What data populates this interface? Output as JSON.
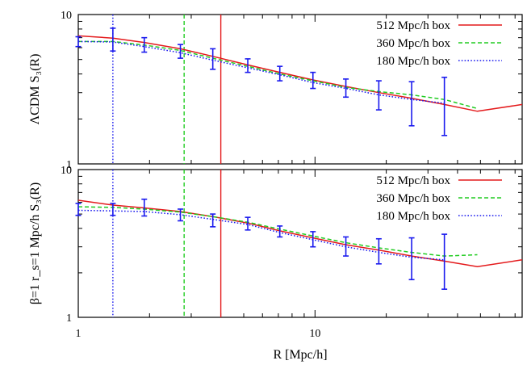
{
  "chart_data": [
    {
      "type": "line",
      "ylabel": "ΛCDM S₃(R)",
      "xlabel": "",
      "xscale": "log",
      "yscale": "log",
      "xlim": [
        1,
        75
      ],
      "ylim": [
        1,
        10
      ],
      "grid": false,
      "legend_position": "top-right",
      "y_ticks": [
        {
          "value": 1,
          "label": "1"
        },
        {
          "value": 10,
          "label": "10"
        }
      ],
      "x_ticks": [
        {
          "value": 1,
          "label": ""
        },
        {
          "value": 10,
          "label": ""
        }
      ],
      "vertical_lines": [
        {
          "series": "180 Mpc/h box",
          "x": 1.4
        },
        {
          "series": "360 Mpc/h box",
          "x": 2.8
        },
        {
          "series": "512 Mpc/h box",
          "x": 4.0
        }
      ],
      "series": [
        {
          "name": "512 Mpc/h box",
          "color": "#e41a1c",
          "dash": "solid",
          "x": [
            1,
            1.4,
            1.9,
            2.7,
            3.7,
            5.2,
            7.1,
            9.8,
            13.5,
            18.6,
            25.6,
            35.2,
            48.5,
            75
          ],
          "y": [
            7.2,
            6.95,
            6.5,
            5.9,
            5.25,
            4.6,
            4.1,
            3.65,
            3.3,
            3.0,
            2.75,
            2.5,
            2.25,
            2.5
          ]
        },
        {
          "name": "360 Mpc/h box",
          "color": "#22cc22",
          "dash": "dashed",
          "x": [
            1,
            1.4,
            1.9,
            2.7,
            3.7,
            5.2,
            7.1,
            9.8,
            13.5,
            18.6,
            25.6,
            35.2,
            48.5
          ],
          "y": [
            6.6,
            6.6,
            6.25,
            5.75,
            5.1,
            4.5,
            4.0,
            3.6,
            3.25,
            3.05,
            2.9,
            2.7,
            2.35
          ]
        },
        {
          "name": "180 Mpc/h box",
          "color": "#1a1aee",
          "dash": "dotted",
          "x": [
            1,
            1.4,
            1.9,
            2.7,
            3.7,
            5.2,
            7.1,
            9.8,
            13.5,
            18.6,
            25.6,
            35.2
          ],
          "y": [
            6.6,
            6.55,
            6.1,
            5.55,
            4.95,
            4.4,
            3.95,
            3.5,
            3.2,
            2.9,
            2.7,
            2.55
          ]
        }
      ],
      "error_bars": {
        "color": "#1a1aee",
        "x": [
          1,
          1.4,
          1.9,
          2.7,
          3.7,
          5.2,
          7.1,
          9.8,
          13.5,
          18.6,
          25.6,
          35.2
        ],
        "y": [
          6.6,
          6.8,
          6.3,
          5.7,
          5.0,
          4.55,
          4.0,
          3.6,
          3.2,
          2.9,
          2.6,
          2.5
        ],
        "low": [
          6.1,
          5.7,
          5.6,
          5.1,
          4.3,
          4.1,
          3.6,
          3.2,
          2.8,
          2.3,
          1.8,
          1.55
        ],
        "high": [
          7.1,
          8.1,
          7.0,
          6.3,
          5.9,
          5.05,
          4.5,
          4.1,
          3.7,
          3.6,
          3.55,
          3.8
        ]
      }
    },
    {
      "type": "line",
      "ylabel": "β=1 r_s=1 Mpc/h S₃(R)",
      "xlabel": "R [Mpc/h]",
      "xscale": "log",
      "yscale": "log",
      "xlim": [
        1,
        75
      ],
      "ylim": [
        1,
        10
      ],
      "grid": false,
      "legend_position": "top-right",
      "y_ticks": [
        {
          "value": 1,
          "label": "1"
        },
        {
          "value": 10,
          "label": "10"
        }
      ],
      "x_ticks": [
        {
          "value": 1,
          "label": "1"
        },
        {
          "value": 10,
          "label": "10"
        }
      ],
      "vertical_lines": [
        {
          "series": "180 Mpc/h box",
          "x": 1.4
        },
        {
          "series": "360 Mpc/h box",
          "x": 2.8
        },
        {
          "series": "512 Mpc/h box",
          "x": 4.0
        }
      ],
      "series": [
        {
          "name": "512 Mpc/h box",
          "color": "#e41a1c",
          "dash": "solid",
          "x": [
            1,
            1.4,
            1.9,
            2.7,
            3.7,
            5.2,
            7.1,
            9.8,
            13.5,
            18.6,
            25.6,
            35.2,
            48.5,
            75
          ],
          "y": [
            6.2,
            5.75,
            5.5,
            5.2,
            4.8,
            4.35,
            3.85,
            3.45,
            3.1,
            2.85,
            2.6,
            2.4,
            2.2,
            2.45
          ]
        },
        {
          "name": "360 Mpc/h box",
          "color": "#22cc22",
          "dash": "dashed",
          "x": [
            1,
            1.4,
            1.9,
            2.7,
            3.7,
            5.2,
            7.1,
            9.8,
            13.5,
            18.6,
            25.6,
            35.2,
            48.5
          ],
          "y": [
            5.6,
            5.55,
            5.4,
            5.15,
            4.8,
            4.4,
            3.95,
            3.55,
            3.2,
            2.95,
            2.75,
            2.6,
            2.65
          ]
        },
        {
          "name": "180 Mpc/h box",
          "color": "#1a1aee",
          "dash": "dotted",
          "x": [
            1,
            1.4,
            1.9,
            2.7,
            3.7,
            5.2,
            7.1,
            9.8,
            13.5,
            18.6,
            25.6,
            35.2
          ],
          "y": [
            5.3,
            5.25,
            5.2,
            4.95,
            4.6,
            4.25,
            3.75,
            3.35,
            3.0,
            2.75,
            2.55,
            2.45
          ]
        }
      ],
      "error_bars": {
        "color": "#1a1aee",
        "x": [
          1,
          1.4,
          1.9,
          2.7,
          3.7,
          5.2,
          7.1,
          9.8,
          13.5,
          18.6,
          25.6,
          35.2
        ],
        "y": [
          5.4,
          5.4,
          5.45,
          5.0,
          4.5,
          4.35,
          3.85,
          3.4,
          3.05,
          2.85,
          2.55,
          2.45
        ],
        "low": [
          4.9,
          4.9,
          4.85,
          4.5,
          4.1,
          3.9,
          3.5,
          3.0,
          2.6,
          2.3,
          1.8,
          1.55
        ],
        "high": [
          5.9,
          5.9,
          6.3,
          5.4,
          5.0,
          4.75,
          4.15,
          3.8,
          3.5,
          3.4,
          3.45,
          3.65
        ]
      }
    }
  ]
}
